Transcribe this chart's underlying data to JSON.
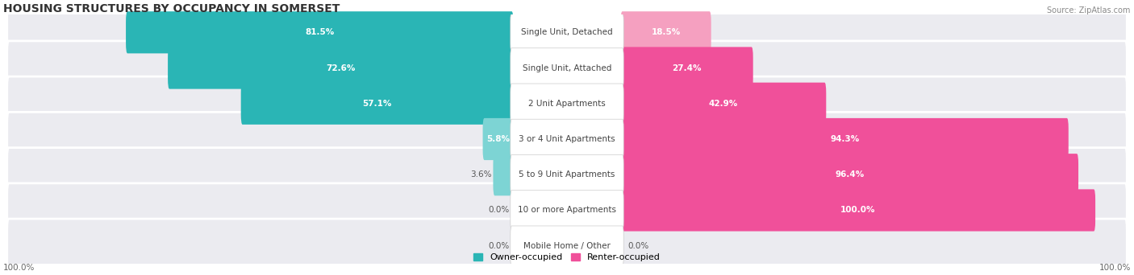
{
  "title": "HOUSING STRUCTURES BY OCCUPANCY IN SOMERSET",
  "source": "Source: ZipAtlas.com",
  "categories": [
    "Single Unit, Detached",
    "Single Unit, Attached",
    "2 Unit Apartments",
    "3 or 4 Unit Apartments",
    "5 to 9 Unit Apartments",
    "10 or more Apartments",
    "Mobile Home / Other"
  ],
  "owner_pct": [
    81.5,
    72.6,
    57.1,
    5.8,
    3.6,
    0.0,
    0.0
  ],
  "renter_pct": [
    18.5,
    27.4,
    42.9,
    94.3,
    96.4,
    100.0,
    0.0
  ],
  "owner_color_dark": "#2ab5b5",
  "owner_color_light": "#7dd4d4",
  "renter_color_dark": "#f0509a",
  "renter_color_light": "#f5a0c0",
  "row_bg_color": "#ebebf0",
  "title_fontsize": 10,
  "label_fontsize": 7.5,
  "legend_fontsize": 8,
  "source_fontsize": 7,
  "axis_label": "100.0%"
}
